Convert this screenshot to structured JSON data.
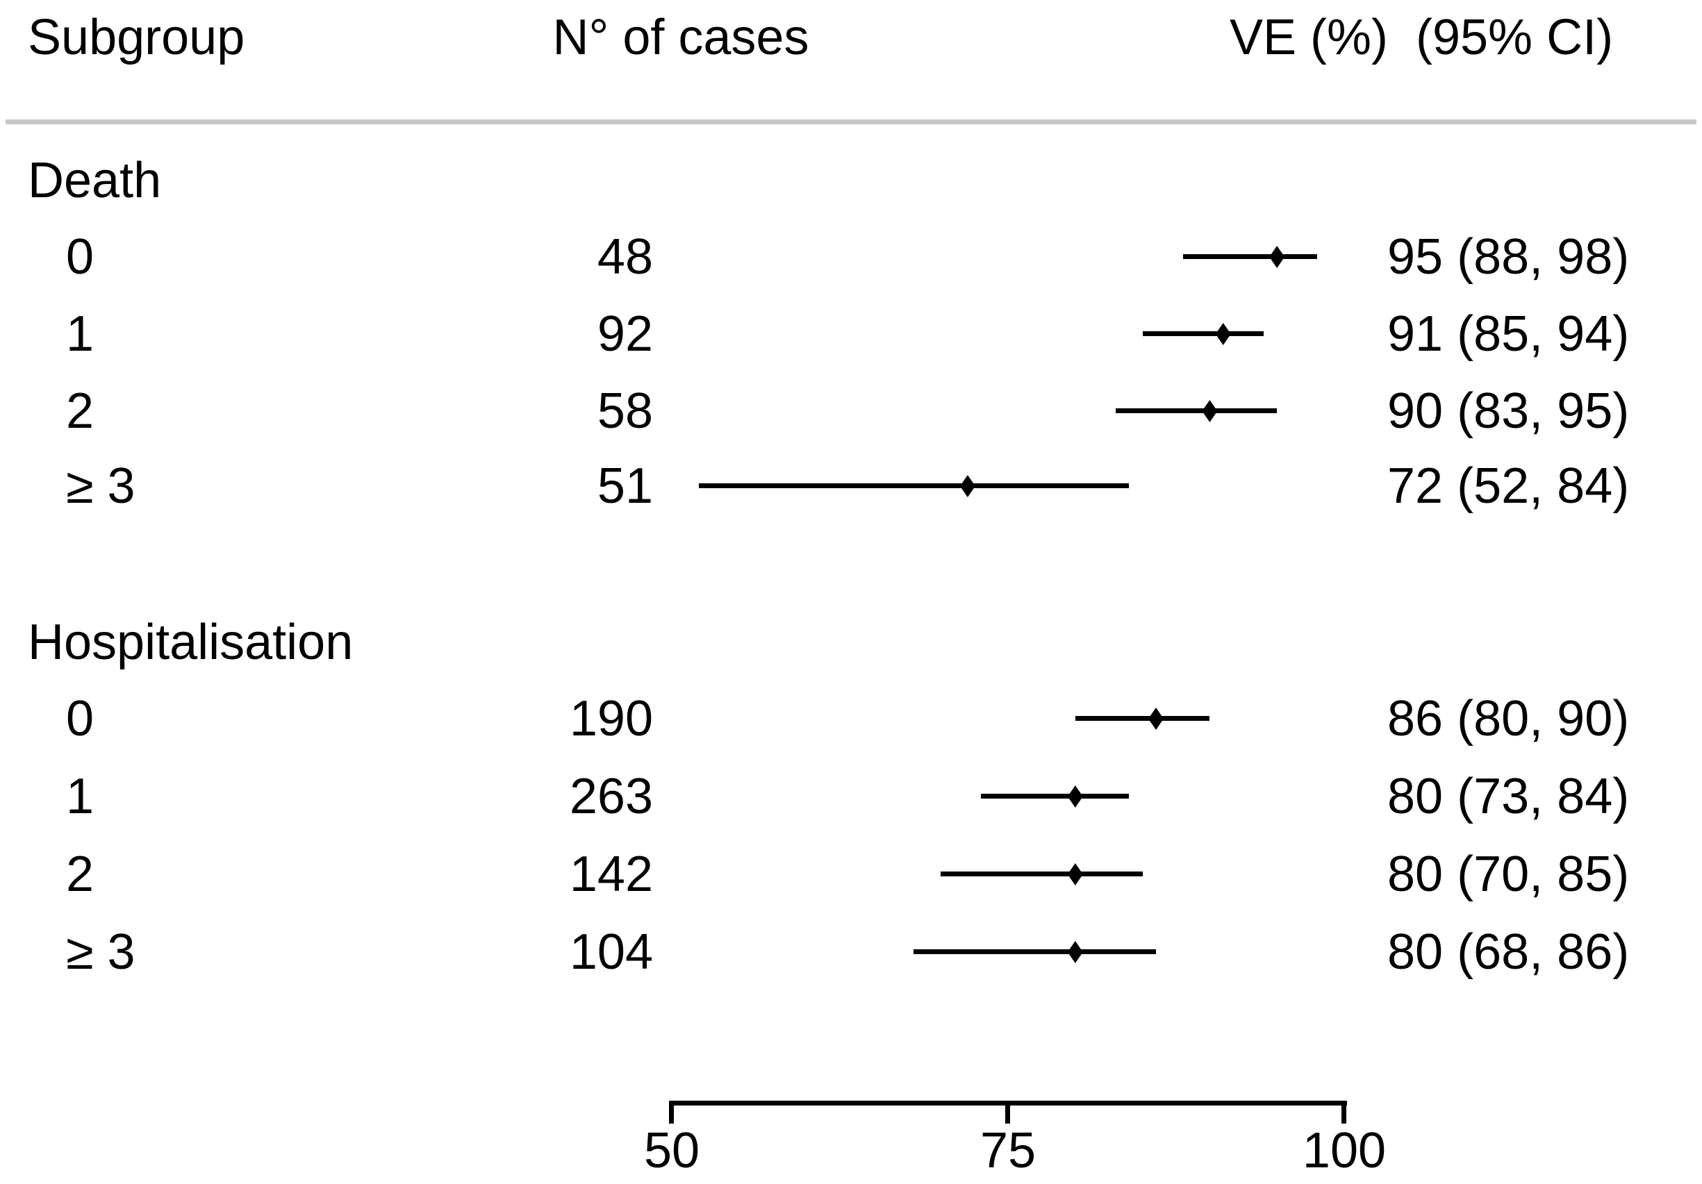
{
  "figure": {
    "headers": {
      "subgroup": "Subgroup",
      "cases": "N° of cases",
      "ve": "VE (%)  (95% CI)"
    }
  },
  "chart_data": {
    "type": "forest",
    "title": "",
    "columns": [
      "Subgroup",
      "N° of cases",
      "VE (%) (95% CI)"
    ],
    "xaxis": {
      "label": "",
      "min": 50,
      "max": 100,
      "ticks": [
        50,
        75,
        100
      ]
    },
    "groups": [
      {
        "label": "Death",
        "rows": [
          {
            "label": "0",
            "cases": "48",
            "ve": 95,
            "ci_low": 88,
            "ci_high": 98,
            "ve_text": "95 (88, 98)"
          },
          {
            "label": "1",
            "cases": "92",
            "ve": 91,
            "ci_low": 85,
            "ci_high": 94,
            "ve_text": "91 (85, 94)"
          },
          {
            "label": "2",
            "cases": "58",
            "ve": 90,
            "ci_low": 83,
            "ci_high": 95,
            "ve_text": "90 (83, 95)"
          },
          {
            "label": "≥ 3",
            "cases": "51",
            "ve": 72,
            "ci_low": 52,
            "ci_high": 84,
            "ve_text": "72 (52, 84)"
          }
        ]
      },
      {
        "label": "Hospitalisation",
        "rows": [
          {
            "label": "0",
            "cases": "190",
            "ve": 86,
            "ci_low": 80,
            "ci_high": 90,
            "ve_text": "86 (80, 90)"
          },
          {
            "label": "1",
            "cases": "263",
            "ve": 80,
            "ci_low": 73,
            "ci_high": 84,
            "ve_text": "80 (73, 84)"
          },
          {
            "label": "2",
            "cases": "142",
            "ve": 80,
            "ci_low": 70,
            "ci_high": 85,
            "ve_text": "80 (70, 85)"
          },
          {
            "label": "≥ 3",
            "cases": "104",
            "ve": 80,
            "ci_low": 68,
            "ci_high": 86,
            "ve_text": "80 (68, 86)"
          }
        ]
      }
    ]
  }
}
